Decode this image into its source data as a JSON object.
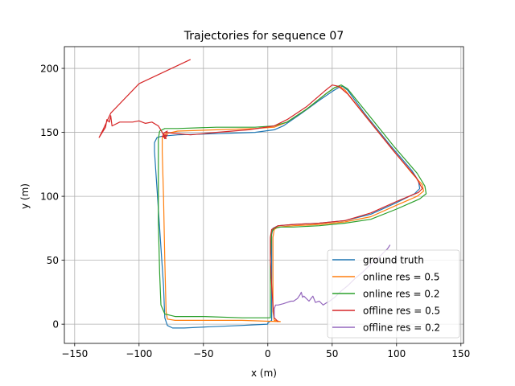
{
  "chart_data": {
    "type": "line",
    "title": "Trajectories for sequence 07",
    "xlabel": "x (m)",
    "ylabel": "y (m)",
    "xlim": [
      -158,
      152
    ],
    "ylim": [
      -15,
      217
    ],
    "xticks": [
      -150,
      -100,
      -50,
      0,
      50,
      100,
      150
    ],
    "yticks": [
      0,
      50,
      100,
      150,
      200
    ],
    "grid": true,
    "legend_position": "lower right",
    "series": [
      {
        "name": "ground truth",
        "color": "#1f77b4",
        "points": [
          [
            0,
            0
          ],
          [
            -20,
            -1
          ],
          [
            -45,
            -2
          ],
          [
            -65,
            -3
          ],
          [
            -74,
            -3
          ],
          [
            -78,
            -1
          ],
          [
            -80,
            5
          ],
          [
            -81,
            30
          ],
          [
            -83,
            60
          ],
          [
            -85,
            90
          ],
          [
            -87,
            120
          ],
          [
            -88,
            135
          ],
          [
            -88,
            142
          ],
          [
            -86,
            146
          ],
          [
            -82,
            147
          ],
          [
            -70,
            148
          ],
          [
            -40,
            149
          ],
          [
            -10,
            150
          ],
          [
            5,
            152
          ],
          [
            12,
            155
          ],
          [
            25,
            164
          ],
          [
            40,
            175
          ],
          [
            50,
            182
          ],
          [
            55,
            185
          ],
          [
            58,
            186
          ],
          [
            62,
            183
          ],
          [
            75,
            165
          ],
          [
            95,
            140
          ],
          [
            112,
            120
          ],
          [
            117,
            112
          ],
          [
            118,
            106
          ],
          [
            114,
            102
          ],
          [
            100,
            95
          ],
          [
            80,
            86
          ],
          [
            60,
            81
          ],
          [
            40,
            79
          ],
          [
            20,
            78
          ],
          [
            8,
            77
          ],
          [
            4,
            75
          ],
          [
            3,
            70
          ],
          [
            3,
            40
          ],
          [
            3,
            10
          ],
          [
            3,
            3
          ],
          [
            0,
            1
          ],
          [
            0,
            0
          ]
        ]
      },
      {
        "name": "online res = 0.5",
        "color": "#ff7f0e",
        "points": [
          [
            10,
            2
          ],
          [
            -20,
            3
          ],
          [
            -55,
            3
          ],
          [
            -72,
            3
          ],
          [
            -78,
            4
          ],
          [
            -79,
            10
          ],
          [
            -80,
            50
          ],
          [
            -81,
            100
          ],
          [
            -82,
            135
          ],
          [
            -82,
            146
          ],
          [
            -79,
            149
          ],
          [
            -70,
            151
          ],
          [
            -40,
            152
          ],
          [
            -10,
            153
          ],
          [
            5,
            154
          ],
          [
            15,
            158
          ],
          [
            30,
            168
          ],
          [
            45,
            180
          ],
          [
            52,
            185
          ],
          [
            56,
            186
          ],
          [
            60,
            183
          ],
          [
            75,
            164
          ],
          [
            95,
            139
          ],
          [
            112,
            118
          ],
          [
            120,
            109
          ],
          [
            121,
            104
          ],
          [
            116,
            100
          ],
          [
            100,
            93
          ],
          [
            80,
            84
          ],
          [
            60,
            80
          ],
          [
            40,
            78
          ],
          [
            20,
            77
          ],
          [
            8,
            76
          ],
          [
            5,
            74
          ],
          [
            4,
            68
          ],
          [
            4,
            40
          ],
          [
            4,
            10
          ],
          [
            5,
            3
          ],
          [
            10,
            2
          ]
        ]
      },
      {
        "name": "online res = 0.2",
        "color": "#2ca02c",
        "points": [
          [
            0,
            5
          ],
          [
            -20,
            5
          ],
          [
            -50,
            6
          ],
          [
            -72,
            6
          ],
          [
            -80,
            8
          ],
          [
            -83,
            15
          ],
          [
            -84,
            40
          ],
          [
            -85,
            80
          ],
          [
            -85,
            120
          ],
          [
            -85,
            145
          ],
          [
            -84,
            151
          ],
          [
            -80,
            153
          ],
          [
            -70,
            153
          ],
          [
            -40,
            154
          ],
          [
            -10,
            154
          ],
          [
            5,
            155
          ],
          [
            15,
            158
          ],
          [
            30,
            168
          ],
          [
            45,
            180
          ],
          [
            52,
            185
          ],
          [
            57,
            187
          ],
          [
            62,
            184
          ],
          [
            78,
            164
          ],
          [
            98,
            139
          ],
          [
            116,
            118
          ],
          [
            122,
            108
          ],
          [
            123,
            102
          ],
          [
            118,
            98
          ],
          [
            100,
            90
          ],
          [
            80,
            82
          ],
          [
            60,
            79
          ],
          [
            40,
            77
          ],
          [
            20,
            76
          ],
          [
            10,
            76
          ],
          [
            5,
            75
          ],
          [
            3,
            72
          ],
          [
            2,
            50
          ],
          [
            2,
            20
          ],
          [
            2,
            5
          ],
          [
            0,
            5
          ]
        ]
      },
      {
        "name": "offline res = 0.5",
        "color": "#d62728",
        "points": [
          [
            -60,
            207
          ],
          [
            -100,
            188
          ],
          [
            -122,
            165
          ],
          [
            -128,
            152
          ],
          [
            -131,
            146
          ],
          [
            -126,
            154
          ],
          [
            -125,
            160
          ],
          [
            -123,
            158
          ],
          [
            -122,
            163
          ],
          [
            -121,
            155
          ],
          [
            -115,
            158
          ],
          [
            -105,
            158
          ],
          [
            -100,
            159
          ],
          [
            -95,
            157
          ],
          [
            -90,
            158
          ],
          [
            -85,
            155
          ],
          [
            -82,
            150
          ],
          [
            -80,
            145
          ],
          [
            -78,
            148
          ],
          [
            -82,
            147
          ],
          [
            -79,
            145
          ],
          [
            -81,
            149
          ],
          [
            -78,
            151
          ],
          [
            -80,
            150
          ],
          [
            -60,
            148
          ],
          [
            -40,
            150
          ],
          [
            -15,
            152
          ],
          [
            5,
            155
          ],
          [
            15,
            160
          ],
          [
            30,
            170
          ],
          [
            45,
            183
          ],
          [
            50,
            187
          ],
          [
            55,
            186
          ],
          [
            62,
            180
          ],
          [
            78,
            160
          ],
          [
            98,
            135
          ],
          [
            115,
            115
          ],
          [
            120,
            106
          ],
          [
            117,
            103
          ],
          [
            100,
            96
          ],
          [
            80,
            87
          ],
          [
            60,
            81
          ],
          [
            40,
            79
          ],
          [
            20,
            78
          ],
          [
            8,
            77
          ],
          [
            3,
            74
          ],
          [
            2,
            68
          ],
          [
            2,
            50
          ],
          [
            3,
            30
          ],
          [
            4,
            15
          ],
          [
            5,
            5
          ],
          [
            8,
            2
          ]
        ]
      },
      {
        "name": "offline res = 0.2",
        "color": "#9467bd",
        "points": [
          [
            5,
            5
          ],
          [
            5,
            12
          ],
          [
            6,
            15
          ],
          [
            8,
            15
          ],
          [
            12,
            16
          ],
          [
            15,
            17
          ],
          [
            18,
            18
          ],
          [
            20,
            18
          ],
          [
            23,
            20
          ],
          [
            25,
            23
          ],
          [
            26,
            25
          ],
          [
            27,
            21
          ],
          [
            28,
            22
          ],
          [
            30,
            20
          ],
          [
            32,
            18
          ],
          [
            35,
            22
          ],
          [
            37,
            17
          ],
          [
            40,
            18
          ],
          [
            43,
            15
          ],
          [
            46,
            17
          ],
          [
            48,
            18
          ],
          [
            52,
            21
          ],
          [
            57,
            26
          ],
          [
            62,
            30
          ],
          [
            68,
            36
          ],
          [
            74,
            41
          ],
          [
            80,
            47
          ],
          [
            86,
            52
          ],
          [
            90,
            56
          ],
          [
            93,
            59
          ],
          [
            95,
            62
          ]
        ]
      }
    ]
  }
}
